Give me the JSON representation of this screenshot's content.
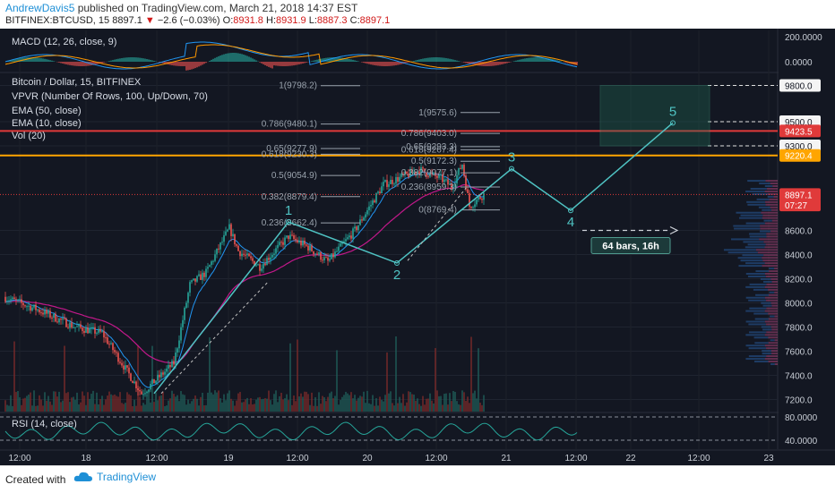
{
  "header": {
    "author": "AndrewDavis5",
    "published_text": " published on TradingView.com, March 21, 2018 14:37 EST",
    "symbol": "BITFINEX:BTCUSD, 15",
    "last": "8897.1",
    "change": "−2.6 (−0.03%)",
    "o_label": "O:",
    "o_val": "8931.8",
    "h_label": "H:",
    "h_val": "8931.9",
    "l_label": "L:",
    "l_val": "8887.3",
    "c_label": "C:",
    "c_val": "8897.1"
  },
  "legends": {
    "macd": "MACD (12, 26, close, 9)",
    "title": "Bitcoin / Dollar, 15, BITFINEX",
    "vpvr": "VPVR (Number Of Rows, 100, Up/Down, 70)",
    "ema50": "EMA (50, close)",
    "ema10": "EMA (10, close)",
    "vol": "Vol (20)",
    "rsi": "RSI (14, close)"
  },
  "footer": {
    "created_with": "Created with",
    "brand": "TradingView"
  },
  "colors": {
    "background": "#131722",
    "up": "#26a69a",
    "down": "#ef5350",
    "ema50": "#c2188a",
    "ema10": "#2196f3",
    "wave": "#4fc3c3",
    "fib": "#9aa3ad",
    "level_red": "#e03a3a",
    "level_orange": "#ffa500"
  },
  "chart_data": {
    "type": "candlestick",
    "symbol": "BITFINEX:BTCUSD",
    "timeframe": "15",
    "y_range": [
      7100,
      9900
    ],
    "x_ticks": [
      "12:00",
      "18",
      "12:00",
      "19",
      "12:00",
      "20",
      "12:00",
      "21",
      "12:00",
      "22",
      "12:00",
      "23"
    ],
    "y_ticks": [
      "9800.0",
      "9500.0",
      "9300.0",
      "9220.4",
      "8600.0",
      "8400.0",
      "8200.0",
      "8000.0",
      "7800.0",
      "7600.0",
      "7400.0",
      "7200.0"
    ],
    "price_labels": [
      {
        "text": "9800.0",
        "price": 9800,
        "kind": "white"
      },
      {
        "text": "9500.0",
        "price": 9500,
        "kind": "white"
      },
      {
        "text": "9423.5",
        "price": 9423.5,
        "kind": "red"
      },
      {
        "text": "9300.0",
        "price": 9300,
        "kind": "white"
      },
      {
        "text": "9220.4",
        "price": 9220.4,
        "kind": "orange"
      },
      {
        "text": "8897.1",
        "price": 8897.1,
        "kind": "red"
      },
      {
        "text": "07:27",
        "price": 8810,
        "kind": "red"
      }
    ],
    "horizontal_levels": [
      {
        "price": 9423.5,
        "color": "red"
      },
      {
        "price": 9220.4,
        "color": "orange"
      }
    ],
    "fib_left": [
      {
        "label": "1(9798.2)",
        "price": 9798.2
      },
      {
        "label": "0.786(9480.1)",
        "price": 9480.1
      },
      {
        "label": "0.65(9277.9)",
        "price": 9277.9
      },
      {
        "label": "0.618(9230.3)",
        "price": 9230.3
      },
      {
        "label": "0.5(9054.9)",
        "price": 9054.9
      },
      {
        "label": "0.382(8879.4)",
        "price": 8879.4
      },
      {
        "label": "0.236(8662.4)",
        "price": 8662.4
      }
    ],
    "fib_right": [
      {
        "label": "1(9575.6)",
        "price": 9575.6
      },
      {
        "label": "0.786(9403.0)",
        "price": 9403.0
      },
      {
        "label": "0.65(9293.3)",
        "price": 9293.3
      },
      {
        "label": "0.618(9267.4)",
        "price": 9267.4
      },
      {
        "label": "0.5(9172.3)",
        "price": 9172.3
      },
      {
        "label": "0.382(9077.1)",
        "price": 9077.1
      },
      {
        "label": "0.236(8959.3)",
        "price": 8959.3
      },
      {
        "label": "0(8769.4)",
        "price": 8769.4
      }
    ],
    "waves": [
      {
        "label": "1",
        "price": 8670,
        "bar": 126
      },
      {
        "label": "2",
        "price": 8330,
        "bar": 181
      },
      {
        "label": "3",
        "price": 9110,
        "bar": 232
      },
      {
        "label": "4",
        "price": 8765,
        "bar": 260
      },
      {
        "label": "5",
        "price": 9490,
        "bar": 310
      }
    ],
    "measure_label": "64 bars, 16h",
    "macd_ticks": [
      "200.0000",
      "0.0000"
    ],
    "rsi_ticks": [
      "80.0000",
      "40.0000"
    ]
  }
}
